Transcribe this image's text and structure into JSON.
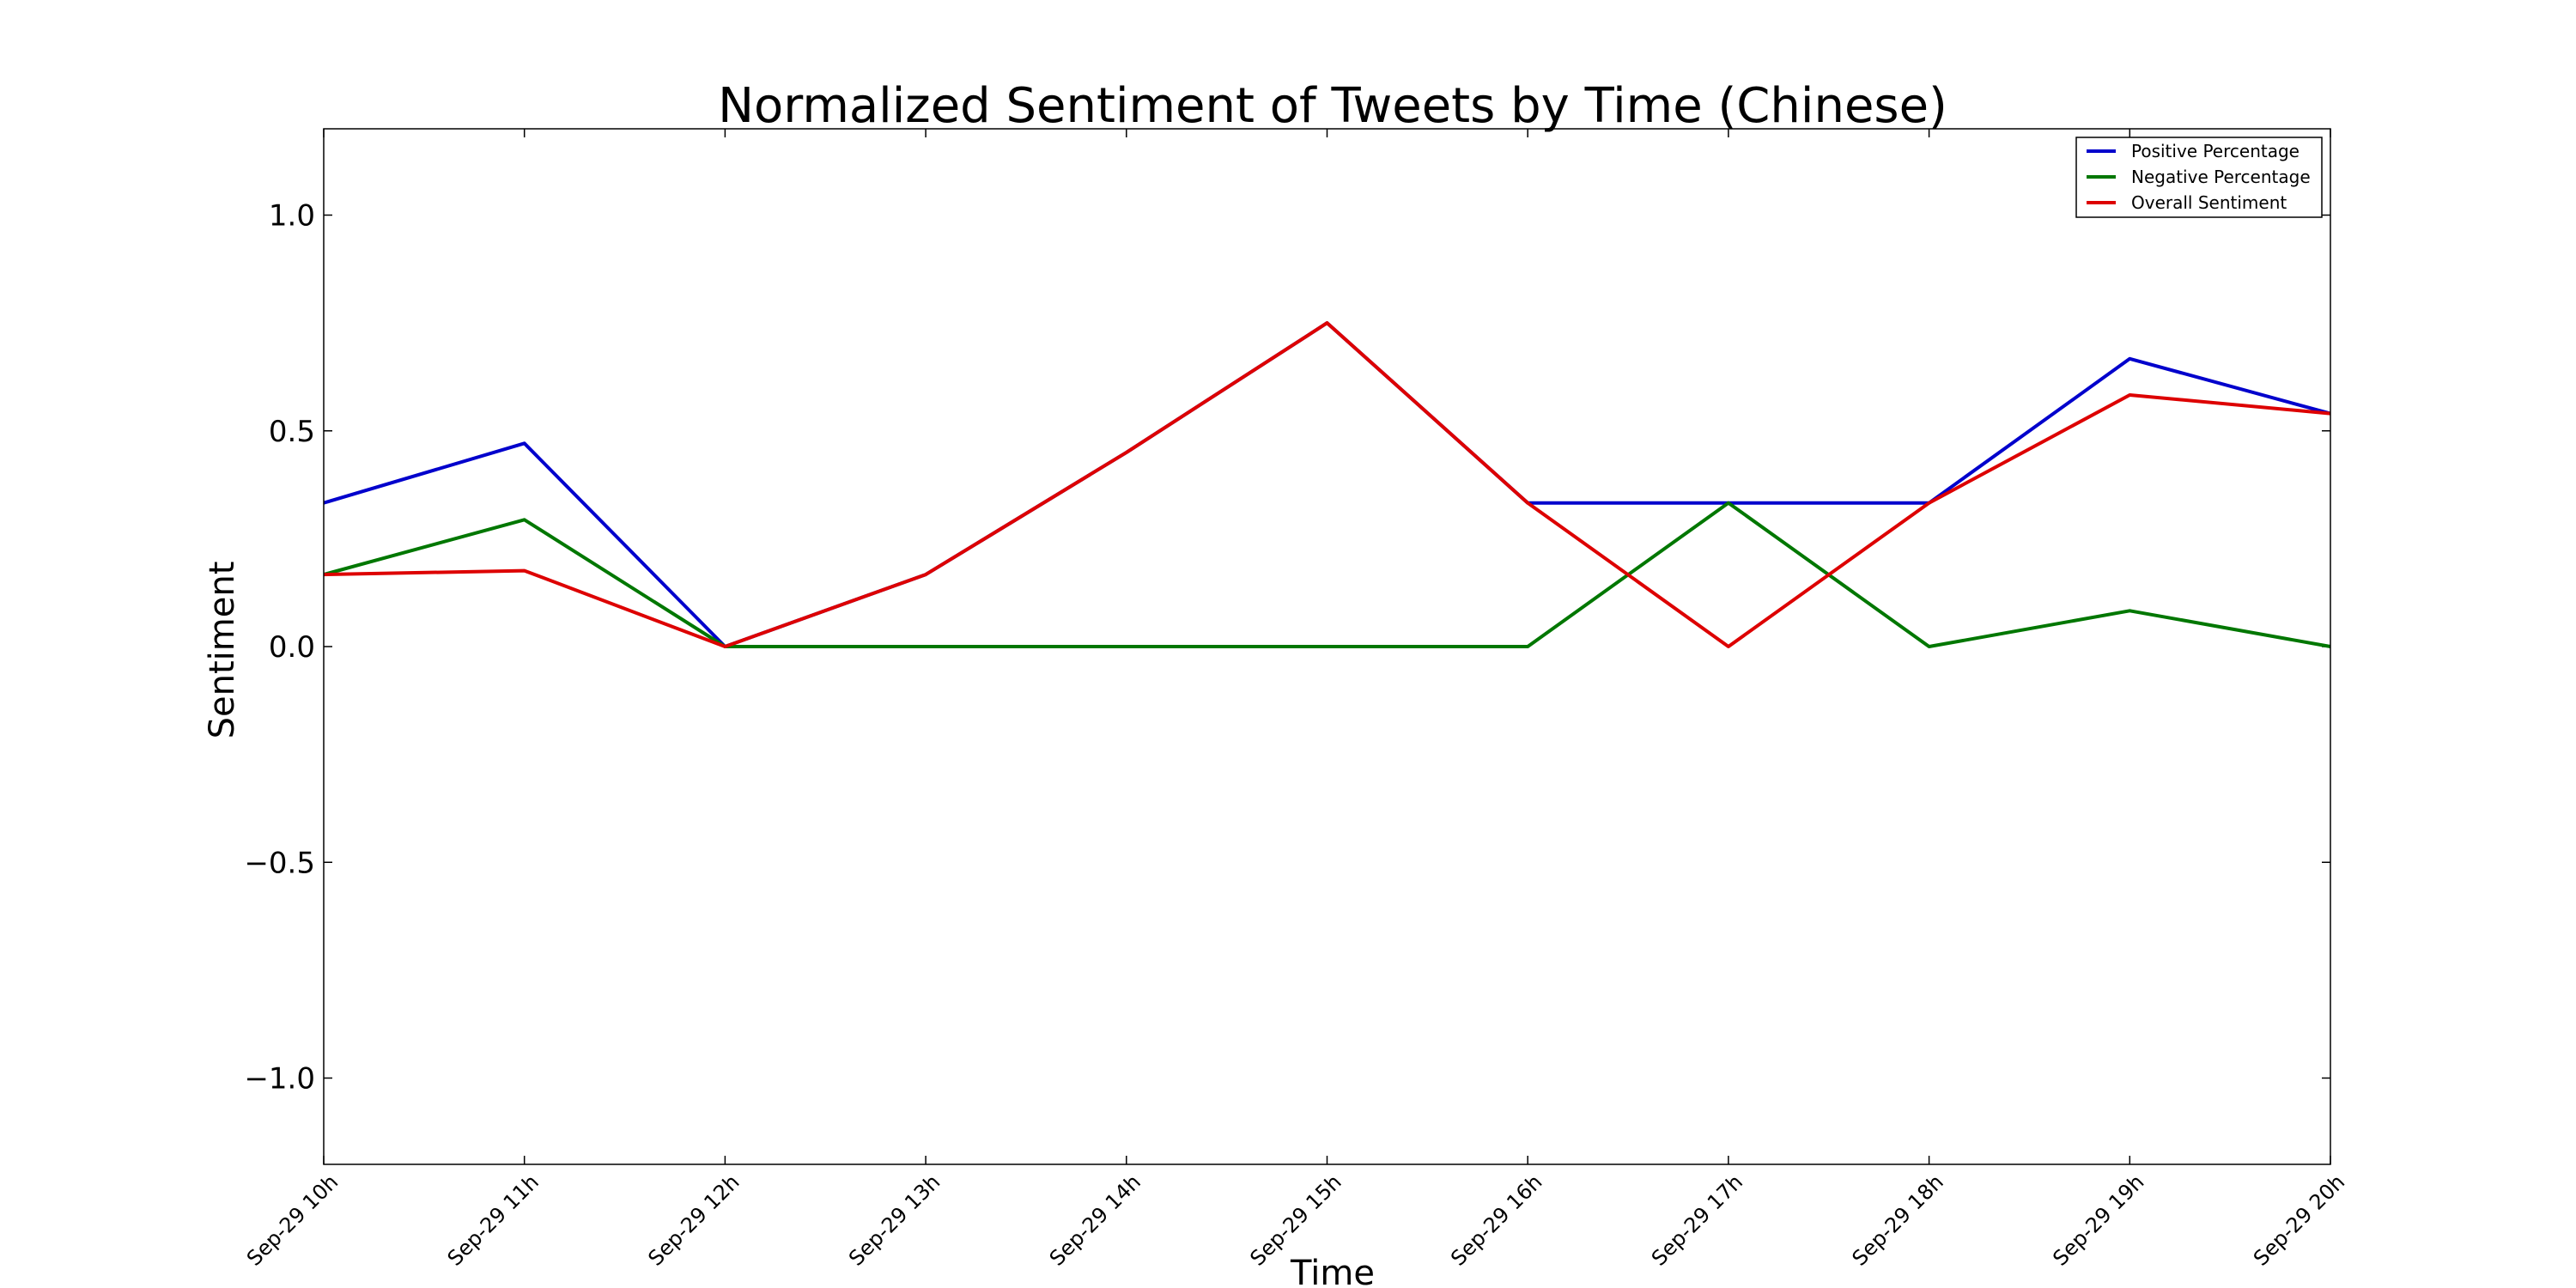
{
  "chart_data": {
    "type": "line",
    "title": "Normalized Sentiment of Tweets by Time (Chinese)",
    "xlabel": "Time",
    "ylabel": "Sentiment",
    "categories": [
      "Sep-29 10h",
      "Sep-29 11h",
      "Sep-29 12h",
      "Sep-29 13h",
      "Sep-29 14h",
      "Sep-29 15h",
      "Sep-29 16h",
      "Sep-29 17h",
      "Sep-29 18h",
      "Sep-29 19h",
      "Sep-29 20h"
    ],
    "ylim": [
      -1.2,
      1.2
    ],
    "yticks": [
      -1.0,
      -0.5,
      0.0,
      0.5,
      1.0
    ],
    "ytick_labels": [
      "−1.0",
      "−0.5",
      "0.0",
      "0.5",
      "1.0"
    ],
    "grid": false,
    "legend_position": "top-right",
    "series": [
      {
        "name": "Positive Percentage",
        "color": "#0000cc",
        "values": [
          0.333,
          0.471,
          0.0,
          0.167,
          0.45,
          0.75,
          0.333,
          0.333,
          0.333,
          0.667,
          0.54
        ]
      },
      {
        "name": "Negative Percentage",
        "color": "#007700",
        "values": [
          0.167,
          0.294,
          0.0,
          0.0,
          0.0,
          0.0,
          0.0,
          0.333,
          0.0,
          0.083,
          0.0
        ]
      },
      {
        "name": "Overall Sentiment",
        "color": "#dd0000",
        "values": [
          0.167,
          0.176,
          0.0,
          0.167,
          0.45,
          0.75,
          0.333,
          0.0,
          0.333,
          0.583,
          0.54
        ]
      }
    ]
  }
}
